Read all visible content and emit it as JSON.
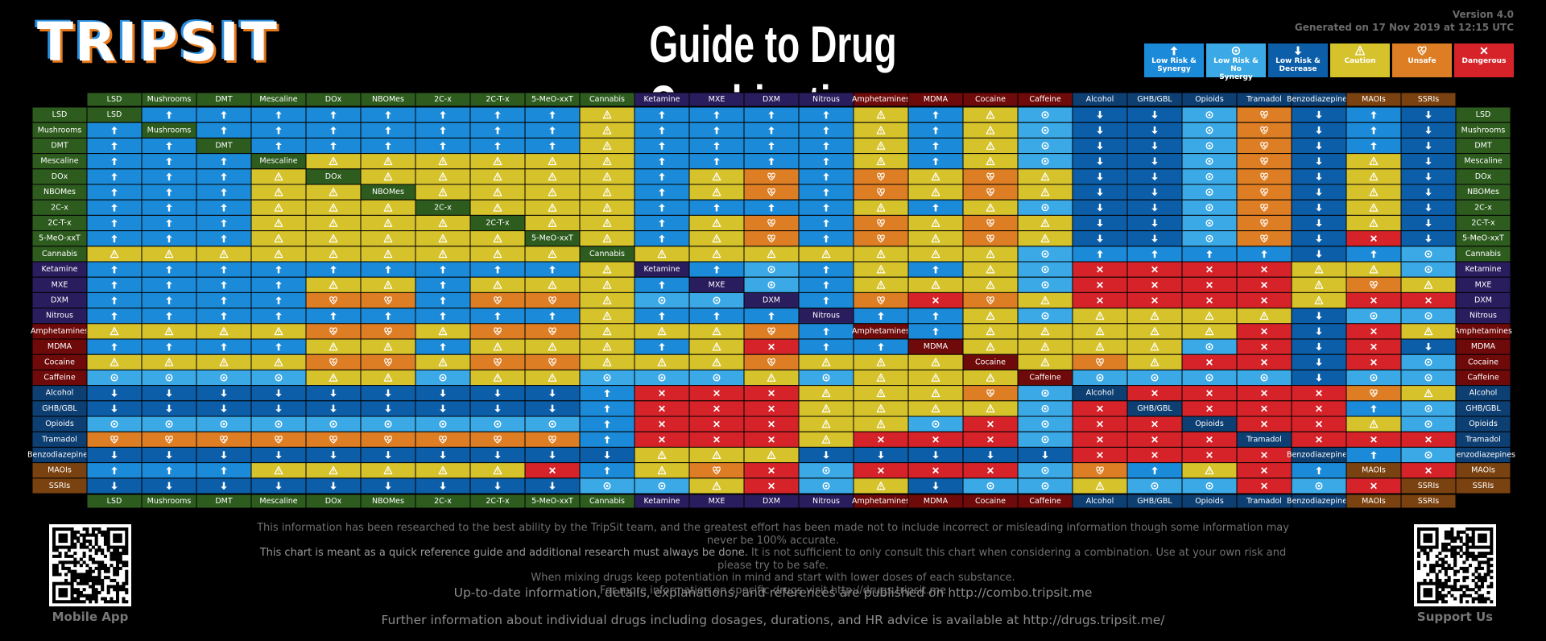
{
  "header": {
    "logo": "TRIPSIT",
    "title": "Guide to Drug Combinations",
    "version": "Version 4.0",
    "generated": "Generated on 17 Nov 2019 at 12:15 UTC"
  },
  "legend": [
    {
      "label": "Low Risk & Synergy",
      "color": "#1b8ad8",
      "icon": "up"
    },
    {
      "label": "Low Risk & No Synergy",
      "color": "#3aa9e6",
      "icon": "circle"
    },
    {
      "label": "Low Risk & Decrease",
      "color": "#0c5ea8",
      "icon": "down"
    },
    {
      "label": "Caution",
      "color": "#d6c22b",
      "icon": "warn"
    },
    {
      "label": "Unsafe",
      "color": "#de7e24",
      "icon": "heart"
    },
    {
      "label": "Dangerous",
      "color": "#d6232a",
      "icon": "x"
    }
  ],
  "drugs": [
    {
      "name": "LSD",
      "color": "#2e5c1f"
    },
    {
      "name": "Mushrooms",
      "color": "#2e5c1f"
    },
    {
      "name": "DMT",
      "color": "#2e5c1f"
    },
    {
      "name": "Mescaline",
      "color": "#2e5c1f"
    },
    {
      "name": "DOx",
      "color": "#2e5c1f"
    },
    {
      "name": "NBOMes",
      "color": "#2e5c1f"
    },
    {
      "name": "2C-x",
      "color": "#2e5c1f"
    },
    {
      "name": "2C-T-x",
      "color": "#2e5c1f"
    },
    {
      "name": "5-MeO-xxT",
      "color": "#2e5c1f"
    },
    {
      "name": "Cannabis",
      "color": "#2e5c1f"
    },
    {
      "name": "Ketamine",
      "color": "#2a1d5e"
    },
    {
      "name": "MXE",
      "color": "#2a1d5e"
    },
    {
      "name": "DXM",
      "color": "#2a1d5e"
    },
    {
      "name": "Nitrous",
      "color": "#2a1d5e"
    },
    {
      "name": "Amphetamines",
      "color": "#6e0a0a"
    },
    {
      "name": "MDMA",
      "color": "#6e0a0a"
    },
    {
      "name": "Cocaine",
      "color": "#6e0a0a"
    },
    {
      "name": "Caffeine",
      "color": "#6e0a0a"
    },
    {
      "name": "Alcohol",
      "color": "#0e3f73"
    },
    {
      "name": "GHB/GBL",
      "color": "#0e3f73"
    },
    {
      "name": "Opioids",
      "color": "#0e3f73"
    },
    {
      "name": "Tramadol",
      "color": "#0e3f73"
    },
    {
      "name": "Benzodiazepines",
      "color": "#0e3f73"
    },
    {
      "name": "MAOIs",
      "color": "#7a4210"
    },
    {
      "name": "SSRIs",
      "color": "#7a4210"
    }
  ],
  "matrix": [
    [
      null,
      0,
      0,
      0,
      0,
      0,
      0,
      0,
      0,
      3,
      0,
      0,
      0,
      0,
      3,
      0,
      3,
      1,
      2,
      2,
      1,
      4,
      2,
      0,
      2
    ],
    [
      0,
      null,
      0,
      0,
      0,
      0,
      0,
      0,
      0,
      3,
      0,
      0,
      0,
      0,
      3,
      0,
      3,
      1,
      2,
      2,
      1,
      4,
      2,
      0,
      2
    ],
    [
      0,
      0,
      null,
      0,
      0,
      0,
      0,
      0,
      0,
      3,
      0,
      0,
      0,
      0,
      3,
      0,
      3,
      1,
      2,
      2,
      1,
      4,
      2,
      0,
      2
    ],
    [
      0,
      0,
      0,
      null,
      3,
      3,
      3,
      3,
      3,
      3,
      0,
      0,
      0,
      0,
      3,
      0,
      3,
      1,
      2,
      2,
      1,
      4,
      2,
      3,
      2
    ],
    [
      0,
      0,
      0,
      3,
      null,
      3,
      3,
      3,
      3,
      3,
      0,
      3,
      4,
      0,
      4,
      3,
      4,
      3,
      2,
      2,
      1,
      4,
      2,
      3,
      2
    ],
    [
      0,
      0,
      0,
      3,
      3,
      null,
      3,
      3,
      3,
      3,
      0,
      3,
      4,
      0,
      4,
      3,
      4,
      3,
      2,
      2,
      1,
      4,
      2,
      3,
      2
    ],
    [
      0,
      0,
      0,
      3,
      3,
      3,
      null,
      3,
      3,
      3,
      0,
      0,
      0,
      0,
      3,
      0,
      3,
      1,
      2,
      2,
      1,
      4,
      2,
      3,
      2
    ],
    [
      0,
      0,
      0,
      3,
      3,
      3,
      3,
      null,
      3,
      3,
      0,
      3,
      4,
      0,
      4,
      3,
      4,
      3,
      2,
      2,
      1,
      4,
      2,
      3,
      2
    ],
    [
      0,
      0,
      0,
      3,
      3,
      3,
      3,
      3,
      null,
      3,
      0,
      3,
      4,
      0,
      4,
      3,
      4,
      3,
      2,
      2,
      1,
      4,
      2,
      5,
      2
    ],
    [
      3,
      3,
      3,
      3,
      3,
      3,
      3,
      3,
      3,
      null,
      3,
      3,
      3,
      3,
      3,
      3,
      3,
      1,
      0,
      0,
      0,
      0,
      2,
      0,
      1
    ],
    [
      0,
      0,
      0,
      0,
      0,
      0,
      0,
      0,
      0,
      3,
      null,
      0,
      1,
      0,
      3,
      0,
      3,
      1,
      5,
      5,
      5,
      5,
      3,
      3,
      1
    ],
    [
      0,
      0,
      0,
      0,
      3,
      3,
      0,
      3,
      3,
      3,
      0,
      null,
      1,
      0,
      3,
      3,
      3,
      1,
      5,
      5,
      5,
      5,
      3,
      4,
      3
    ],
    [
      0,
      0,
      0,
      0,
      4,
      4,
      0,
      4,
      4,
      3,
      1,
      1,
      null,
      0,
      4,
      5,
      4,
      3,
      5,
      5,
      5,
      5,
      3,
      5,
      5
    ],
    [
      0,
      0,
      0,
      0,
      0,
      0,
      0,
      0,
      0,
      3,
      0,
      0,
      0,
      null,
      0,
      0,
      3,
      1,
      3,
      3,
      3,
      3,
      2,
      1,
      1
    ],
    [
      3,
      3,
      3,
      3,
      4,
      4,
      3,
      4,
      4,
      3,
      3,
      3,
      4,
      0,
      null,
      0,
      3,
      3,
      3,
      3,
      3,
      5,
      2,
      5,
      3
    ],
    [
      0,
      0,
      0,
      0,
      3,
      3,
      0,
      3,
      3,
      3,
      0,
      3,
      5,
      0,
      0,
      null,
      3,
      3,
      3,
      3,
      1,
      5,
      2,
      5,
      2
    ],
    [
      3,
      3,
      3,
      3,
      4,
      4,
      3,
      4,
      4,
      3,
      3,
      3,
      4,
      3,
      3,
      3,
      null,
      3,
      4,
      3,
      5,
      5,
      2,
      5,
      1
    ],
    [
      1,
      1,
      1,
      1,
      3,
      3,
      1,
      3,
      3,
      1,
      1,
      1,
      3,
      1,
      3,
      3,
      3,
      null,
      1,
      1,
      1,
      1,
      2,
      1,
      1
    ],
    [
      2,
      2,
      2,
      2,
      2,
      2,
      2,
      2,
      2,
      0,
      5,
      5,
      5,
      3,
      3,
      3,
      4,
      1,
      null,
      5,
      5,
      5,
      5,
      4,
      3
    ],
    [
      2,
      2,
      2,
      2,
      2,
      2,
      2,
      2,
      2,
      0,
      5,
      5,
      5,
      3,
      3,
      3,
      3,
      1,
      5,
      null,
      5,
      5,
      5,
      0,
      1
    ],
    [
      1,
      1,
      1,
      1,
      1,
      1,
      1,
      1,
      1,
      0,
      5,
      5,
      5,
      3,
      3,
      1,
      5,
      1,
      5,
      5,
      null,
      5,
      5,
      3,
      1
    ],
    [
      4,
      4,
      4,
      4,
      4,
      4,
      4,
      4,
      4,
      0,
      5,
      5,
      5,
      3,
      5,
      5,
      5,
      1,
      5,
      5,
      5,
      null,
      5,
      5,
      5
    ],
    [
      2,
      2,
      2,
      2,
      2,
      2,
      2,
      2,
      2,
      2,
      3,
      3,
      3,
      2,
      2,
      2,
      2,
      2,
      5,
      5,
      5,
      5,
      null,
      0,
      1
    ],
    [
      0,
      0,
      0,
      3,
      3,
      3,
      3,
      3,
      5,
      0,
      3,
      4,
      5,
      1,
      5,
      5,
      5,
      1,
      4,
      0,
      3,
      5,
      0,
      null,
      5
    ],
    [
      2,
      2,
      2,
      2,
      2,
      2,
      2,
      2,
      2,
      1,
      1,
      3,
      5,
      1,
      3,
      2,
      1,
      1,
      3,
      1,
      1,
      5,
      1,
      5,
      null
    ]
  ],
  "footer": {
    "disclaimer": [
      [
        "This information has been researched to the best ability by the TripSit team, and the greatest effort has been made not to include incorrect or misleading information though some information may never be 100% accurate."
      ],
      [
        "This chart is meant as a quick reference guide and additional research must always be done.",
        "It is not sufficient to only consult this chart when considering a combination. Use at your own risk and please try to be safe."
      ],
      [
        "When mixing drugs keep potentiation in mind and start with lower doses of each substance."
      ],
      [
        "For more information on specific drugs visit http://drugs.tripsit.me"
      ]
    ],
    "combo": "Up-to-date information, details, explanations, and references are published on http://combo.tripsit.me",
    "further": "Further information about individual drugs including dosages, durations, and HR advice is available at http://drugs.tripsit.me/",
    "left_qr": "Mobile App",
    "right_qr": "Support Us"
  }
}
